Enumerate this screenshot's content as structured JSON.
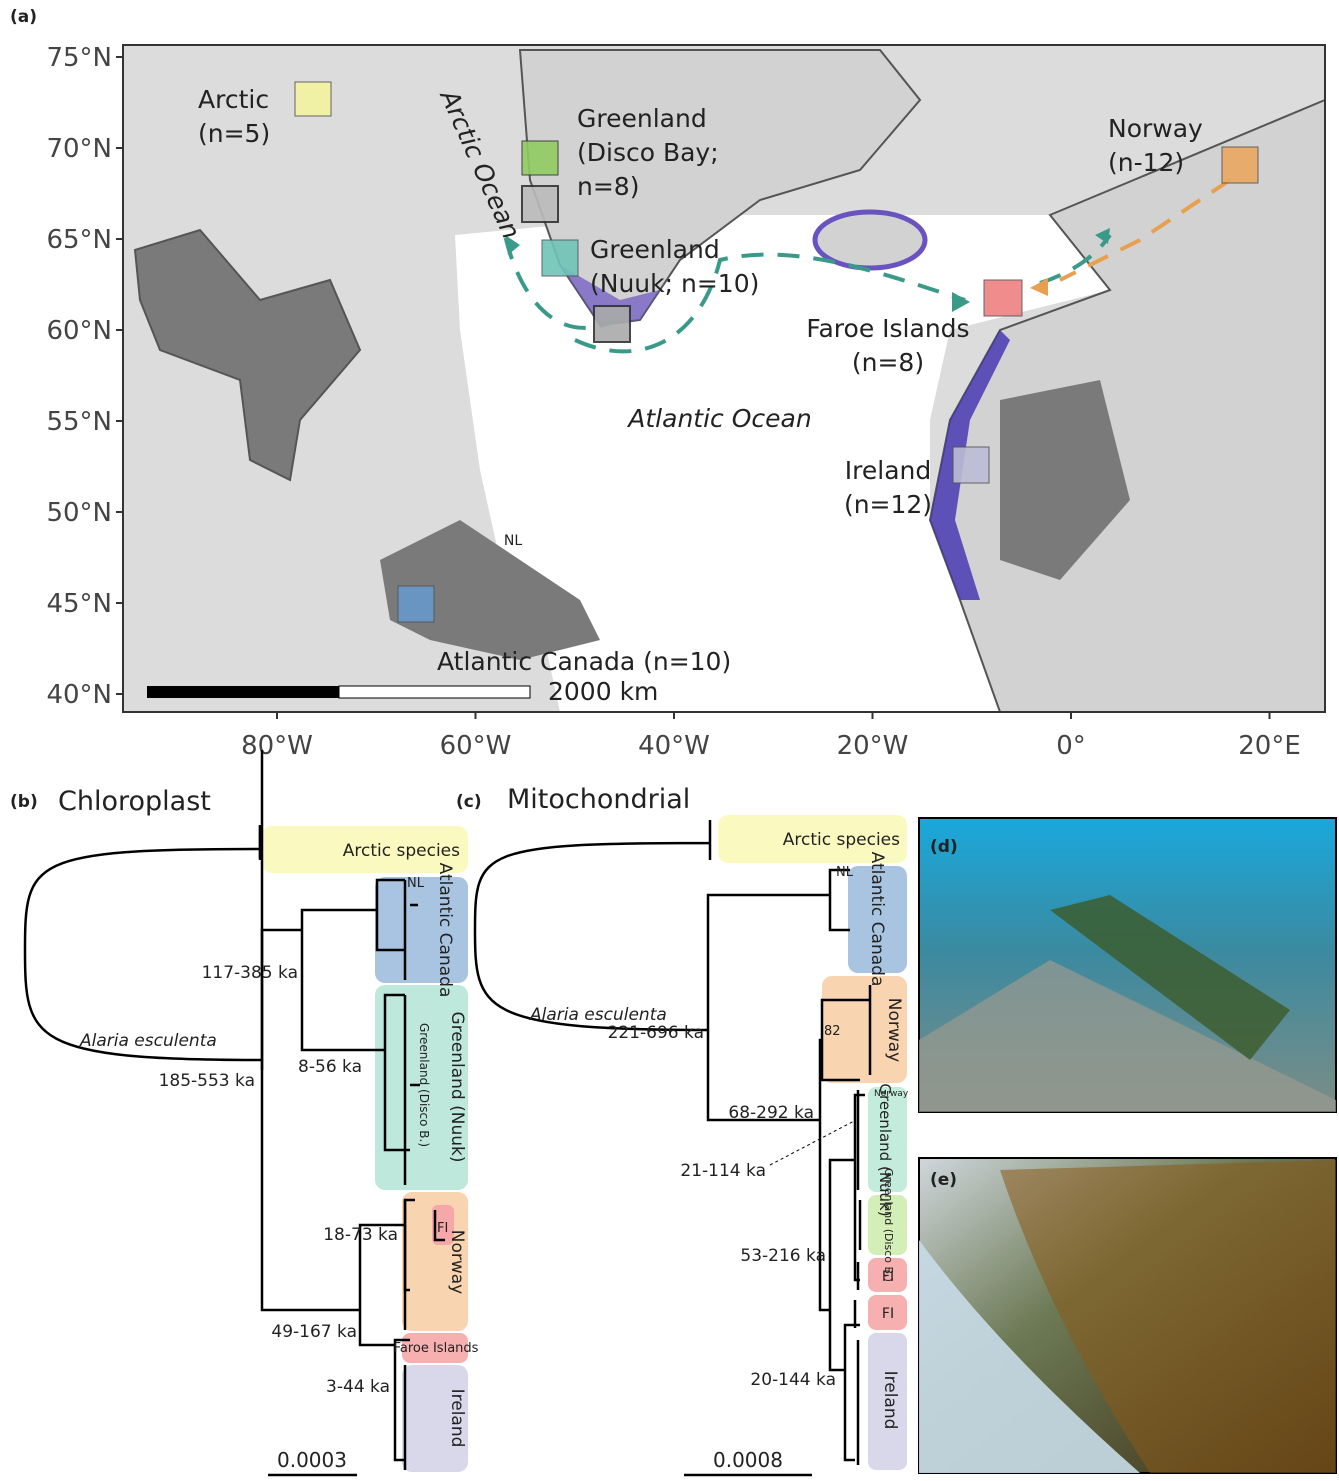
{
  "panel_a": {
    "label": "(a)",
    "lat_ticks": [
      "75°N",
      "70°N",
      "65°N",
      "60°N",
      "55°N",
      "50°N",
      "45°N",
      "40°N"
    ],
    "lon_ticks": [
      "80°W",
      "60°W",
      "40°W",
      "20°W",
      "0°",
      "20°E"
    ],
    "ocean_labels": [
      "Arctic Ocean",
      "Atlantic Ocean"
    ],
    "sites": [
      {
        "lines": [
          "Arctic",
          "(n=5)"
        ]
      },
      {
        "lines": [
          "Greenland",
          "(Disco Bay;",
          "n=8)"
        ]
      },
      {
        "lines": [
          "Greenland",
          "(Nuuk; n=10)"
        ]
      },
      {
        "lines": [
          "Norway",
          "(n-12)"
        ]
      },
      {
        "lines": [
          "Faroe Islands",
          "(n=8)"
        ]
      },
      {
        "lines": [
          "Ireland",
          "(n=12)"
        ]
      },
      {
        "lines": [
          "Atlantic Canada (n=10)"
        ]
      }
    ],
    "inlet_label": "NL",
    "scale_bar": "2000 km"
  },
  "panel_b": {
    "label": "(b)",
    "title": "Chloroplast",
    "clades": [
      "Arctic species",
      "NL",
      "Atlantic Canada",
      "Greenland (Nuuk)",
      "Greenland (Disco B.)",
      "FI",
      "Norway",
      "Faroe Islands",
      "Ireland"
    ],
    "species": "Alaria esculenta",
    "ages": [
      "117-385 ka",
      "8-56 ka",
      "185-553 ka",
      "18-73 ka",
      "49-167 ka",
      "3-44 ka"
    ],
    "scale": "0.0003"
  },
  "panel_c": {
    "label": "(c)",
    "title": "Mitochondrial",
    "clades": [
      "Arctic species",
      "NL",
      "Atlantic Canada",
      "Norway",
      "Norway",
      "Greenland (Nuuk)",
      "Greenland (Disco B.)",
      "FI",
      "FI",
      "Ireland"
    ],
    "support": "82",
    "species": "Alaria esculenta",
    "ages": [
      "221-696 ka",
      "68-292 ka",
      "21-114 ka",
      "53-216 ka",
      "20-144 ka"
    ],
    "scale": "0.0008"
  },
  "panel_d": {
    "label": "(d)"
  },
  "panel_e": {
    "label": "(e)"
  }
}
